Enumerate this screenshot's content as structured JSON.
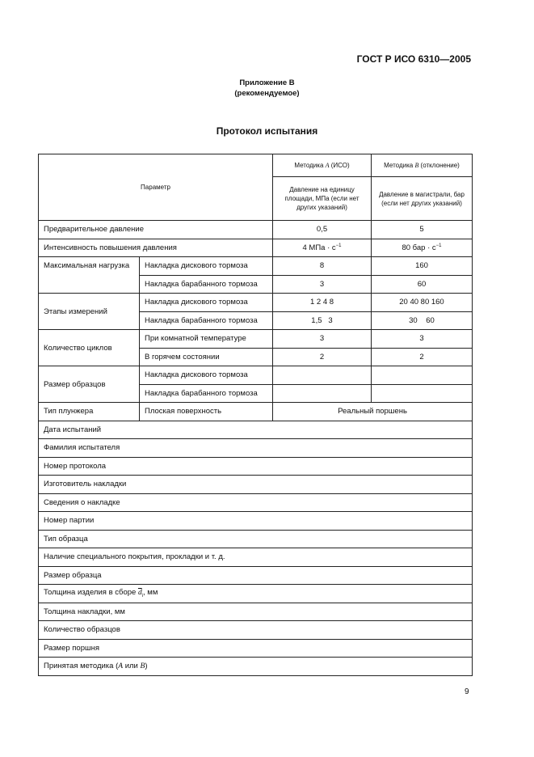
{
  "header": {
    "standard": "ГОСТ Р ИСО 6310—2005",
    "annex": "Приложение В",
    "annex_note": "(рекомендуемое)",
    "title": "Протокол испытания"
  },
  "table": {
    "col_param": "Параметр",
    "method_a": {
      "pre": "Методика ",
      "letter": "A",
      "post": " (ИСО)",
      "unit": "Давление на единицу площади, МПа (если нет других указаний)"
    },
    "method_b": {
      "pre": "Методика ",
      "letter": "B",
      "post": " (отклонение)",
      "unit": "Давление в магистрали, бар (если нет других указаний)"
    },
    "preload": {
      "label": "Предварительное давление",
      "a": "0,5",
      "b": "5"
    },
    "rate": {
      "label": "Интенсивность повышения давления",
      "a": "4 МПа · с",
      "b": "80 бар · с",
      "exp": "−1"
    },
    "max_load": {
      "label": "Максимальная нагрузка",
      "disc": "Накладка дискового тормоза",
      "drum": "Накладка барабанного тормоза",
      "disc_a": "8",
      "disc_b": "160",
      "drum_a": "3",
      "drum_b": "60"
    },
    "steps": {
      "label": "Этапы измерений",
      "disc": "Накладка дискового тормоза",
      "drum": "Накладка барабанного тормоза",
      "disc_a": "1 2 4 8",
      "disc_b": "20 40 80 160",
      "drum_a": "1,5   3",
      "drum_b": "30    60"
    },
    "cycles": {
      "label": "Количество циклов",
      "room": "При комнатной температуре",
      "hot": "В горячем состоянии",
      "room_a": "3",
      "room_b": "3",
      "hot_a": "2",
      "hot_b": "2"
    },
    "sample_size": {
      "label": "Размер образцов",
      "disc": "Накладка дискового тормоза",
      "drum": "Накладка барабанного тормоза"
    },
    "plunger": {
      "label": "Тип плунжера",
      "a": "Плоская поверхность",
      "b": "Реальный поршень"
    },
    "rows": [
      "Дата испытаний",
      "Фамилия испытателя",
      "Номер протокола",
      "Изготовитель накладки",
      "Сведения о накладке",
      "Номер партии",
      "Тип образца",
      "Наличие специального покрытия, прокладки и т. д.",
      "Размер образца"
    ],
    "thickness": {
      "pre": "Толщина изделия в сборе ",
      "sym": "d",
      "sub": "i",
      "post": ", мм"
    },
    "rows2": [
      "Толщина накладки, мм",
      "Количество образцов",
      "Размер поршня"
    ],
    "method_row": {
      "pre": "Принятая методика (",
      "a": "A",
      "mid": " или ",
      "b": "B",
      "post": ")"
    }
  },
  "page_number": "9"
}
